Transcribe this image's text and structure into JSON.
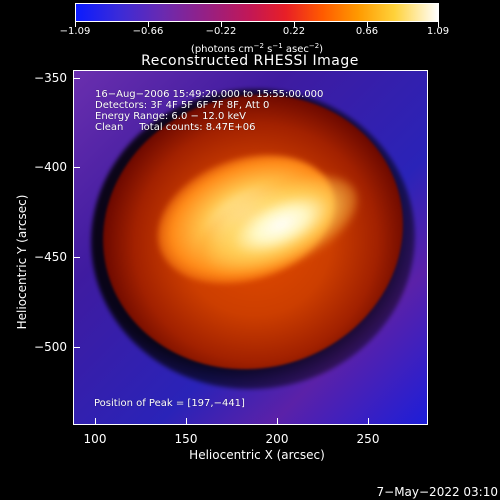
{
  "colorbar": {
    "ticks": [
      "−1.09",
      "−0.66",
      "−0.22",
      "0.22",
      "0.66",
      "1.09"
    ],
    "units_prefix": "(photons cm",
    "units_exp1": "−2",
    "units_mid": " s",
    "units_exp2": "−1",
    "units_end": " asec",
    "units_exp3": "−2",
    "units_close": ")"
  },
  "plot": {
    "title": "Reconstructed RHESSI Image",
    "info_line_1": "16−Aug−2006 15:49:20.000 to 15:55:00.000",
    "info_line_2": "Detectors: 3F 4F 5F 6F 7F 8F, Att 0",
    "info_line_3": "Energy Range: 6.0 − 12.0 keV",
    "info_line_4": "Clean     Total counts: 8.47E+06",
    "peak_text": "Position of Peak = [197,−441]",
    "x_axis_label": "Heliocentric X (arcsec)",
    "y_axis_label": "Heliocentric Y (arcsec)",
    "x_ticks": [
      "100",
      "150",
      "200",
      "250"
    ],
    "y_ticks": [
      "−350",
      "−400",
      "−450",
      "−500"
    ]
  },
  "timestamp": "7−May−2022 03:10",
  "colors": {
    "background": "#000000",
    "text": "#ffffff",
    "colorbar_low": "#0b1bff",
    "colorbar_high": "#ffffff"
  },
  "image_values": {
    "peak_x": 197,
    "peak_y": -441
  }
}
